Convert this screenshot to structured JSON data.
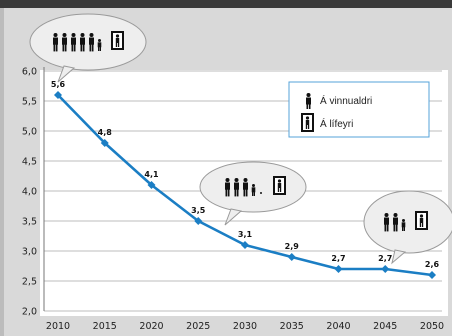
{
  "colors": {
    "background": "#d9d9d9",
    "band": "#3a3a3a",
    "plot": "#ffffff",
    "line": "#1b7ec4",
    "legend_border": "#55a3d9",
    "grid": "#bdbdbd"
  },
  "icons": {
    "working_age": "person-icon",
    "retired": "framed-person-icon"
  },
  "legend": [
    {
      "label": "Á vinnualdri",
      "icon": "person-icon"
    },
    {
      "label": "Á lífeyri",
      "icon": "framed-person-icon"
    }
  ],
  "callouts": [
    {
      "x": 2010,
      "working_count": 5,
      "retired_count": 1
    },
    {
      "x": 2030,
      "working_count": 3,
      "retired_count": 1
    },
    {
      "x": 2050,
      "working_count": 2,
      "retired_count": 1
    }
  ],
  "chart_data": {
    "type": "line",
    "title": "",
    "xlabel": "",
    "ylabel": "",
    "x": [
      2010,
      2015,
      2020,
      2025,
      2030,
      2035,
      2040,
      2045,
      2050
    ],
    "series": [
      {
        "values": [
          5.6,
          4.8,
          4.1,
          3.5,
          3.1,
          2.9,
          2.7,
          2.7,
          2.6
        ]
      }
    ],
    "data_labels": [
      "5,6",
      "4,8",
      "4,1",
      "3,5",
      "3,1",
      "2,9",
      "2,7",
      "2,7",
      "2,6"
    ],
    "y_ticks": [
      "2,0",
      "2,5",
      "3,0",
      "3,5",
      "4,0",
      "4,5",
      "5,0",
      "5,5",
      "6,0"
    ],
    "x_ticks": [
      "2010",
      "2015",
      "2020",
      "2025",
      "2030",
      "2035",
      "2040",
      "2045",
      "2050"
    ],
    "ylim": [
      2.0,
      6.0
    ],
    "xlim": [
      2010,
      2050
    ],
    "grid": true,
    "legend_position": "top-right"
  }
}
